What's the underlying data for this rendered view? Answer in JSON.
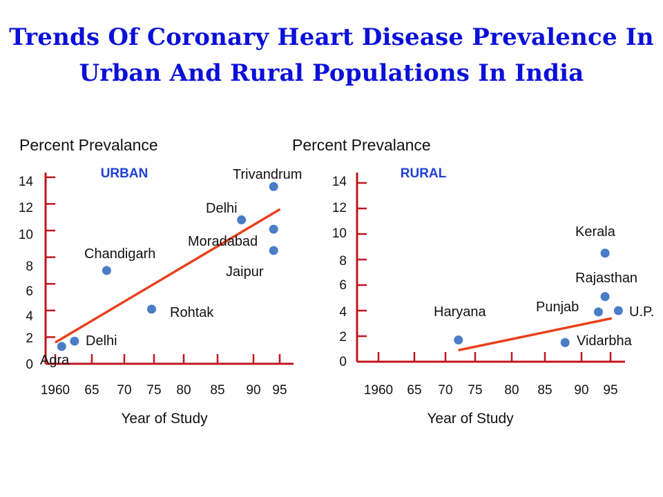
{
  "title_line1": "Trends Of Coronary Heart Disease Prevalence In",
  "title_line2": "Urban And Rural Populations In India",
  "colors": {
    "title": "#0a10d8",
    "axis": "#c0151c",
    "trend": "#e8401c",
    "point": "#4a7cc7",
    "series_label": "#1f3fd6"
  },
  "chart_data": [
    {
      "type": "scatter",
      "ylabel": "Percent Prevalance",
      "xlabel": "Year of Study",
      "series_label": "URBAN",
      "ylim": [
        0,
        14
      ],
      "xlim": [
        1960,
        1995
      ],
      "y_ticks": [
        "0",
        "2",
        "4",
        "6",
        "8",
        "10",
        "12",
        "14"
      ],
      "x_ticks": [
        "1960",
        "65",
        "70",
        "75",
        "80",
        "85",
        "90",
        "95"
      ],
      "points": [
        {
          "label": "Agra",
          "x": 1961,
          "y": 1.3
        },
        {
          "label": "Delhi",
          "x": 1963,
          "y": 1.7
        },
        {
          "label": "Chandigarh",
          "x": 1968,
          "y": 7.0
        },
        {
          "label": "Rohtak",
          "x": 1975,
          "y": 4.1
        },
        {
          "label": "Delhi",
          "x": 1989,
          "y": 10.8
        },
        {
          "label": "Trivandrum",
          "x": 1994,
          "y": 13.3
        },
        {
          "label": "Moradabad",
          "x": 1994,
          "y": 10.1
        },
        {
          "label": "Jaipur",
          "x": 1994,
          "y": 8.5
        }
      ],
      "trend_line": [
        [
          1960,
          1.6
        ],
        [
          1995,
          11.6
        ]
      ]
    },
    {
      "type": "scatter",
      "ylabel": "Percent Prevalance",
      "xlabel": "Year of Study",
      "series_label": "RURAL",
      "ylim": [
        0,
        14
      ],
      "xlim": [
        1960,
        1995
      ],
      "y_ticks": [
        "0",
        "2",
        "4",
        "6",
        "8",
        "10",
        "12",
        "14"
      ],
      "x_ticks": [
        "1960",
        "65",
        "70",
        "75",
        "80",
        "85",
        "90",
        "95"
      ],
      "points": [
        {
          "label": "Haryana",
          "x": 1972,
          "y": 1.7
        },
        {
          "label": "Vidarbha",
          "x": 1988,
          "y": 1.5
        },
        {
          "label": "Punjab",
          "x": 1993,
          "y": 3.9
        },
        {
          "label": "U.P.",
          "x": 1996,
          "y": 4.0
        },
        {
          "label": "Rajasthan",
          "x": 1994,
          "y": 5.1
        },
        {
          "label": "Kerala",
          "x": 1994,
          "y": 8.5
        }
      ],
      "trend_line": [
        [
          1972,
          0.9
        ],
        [
          1995,
          3.4
        ]
      ]
    }
  ]
}
